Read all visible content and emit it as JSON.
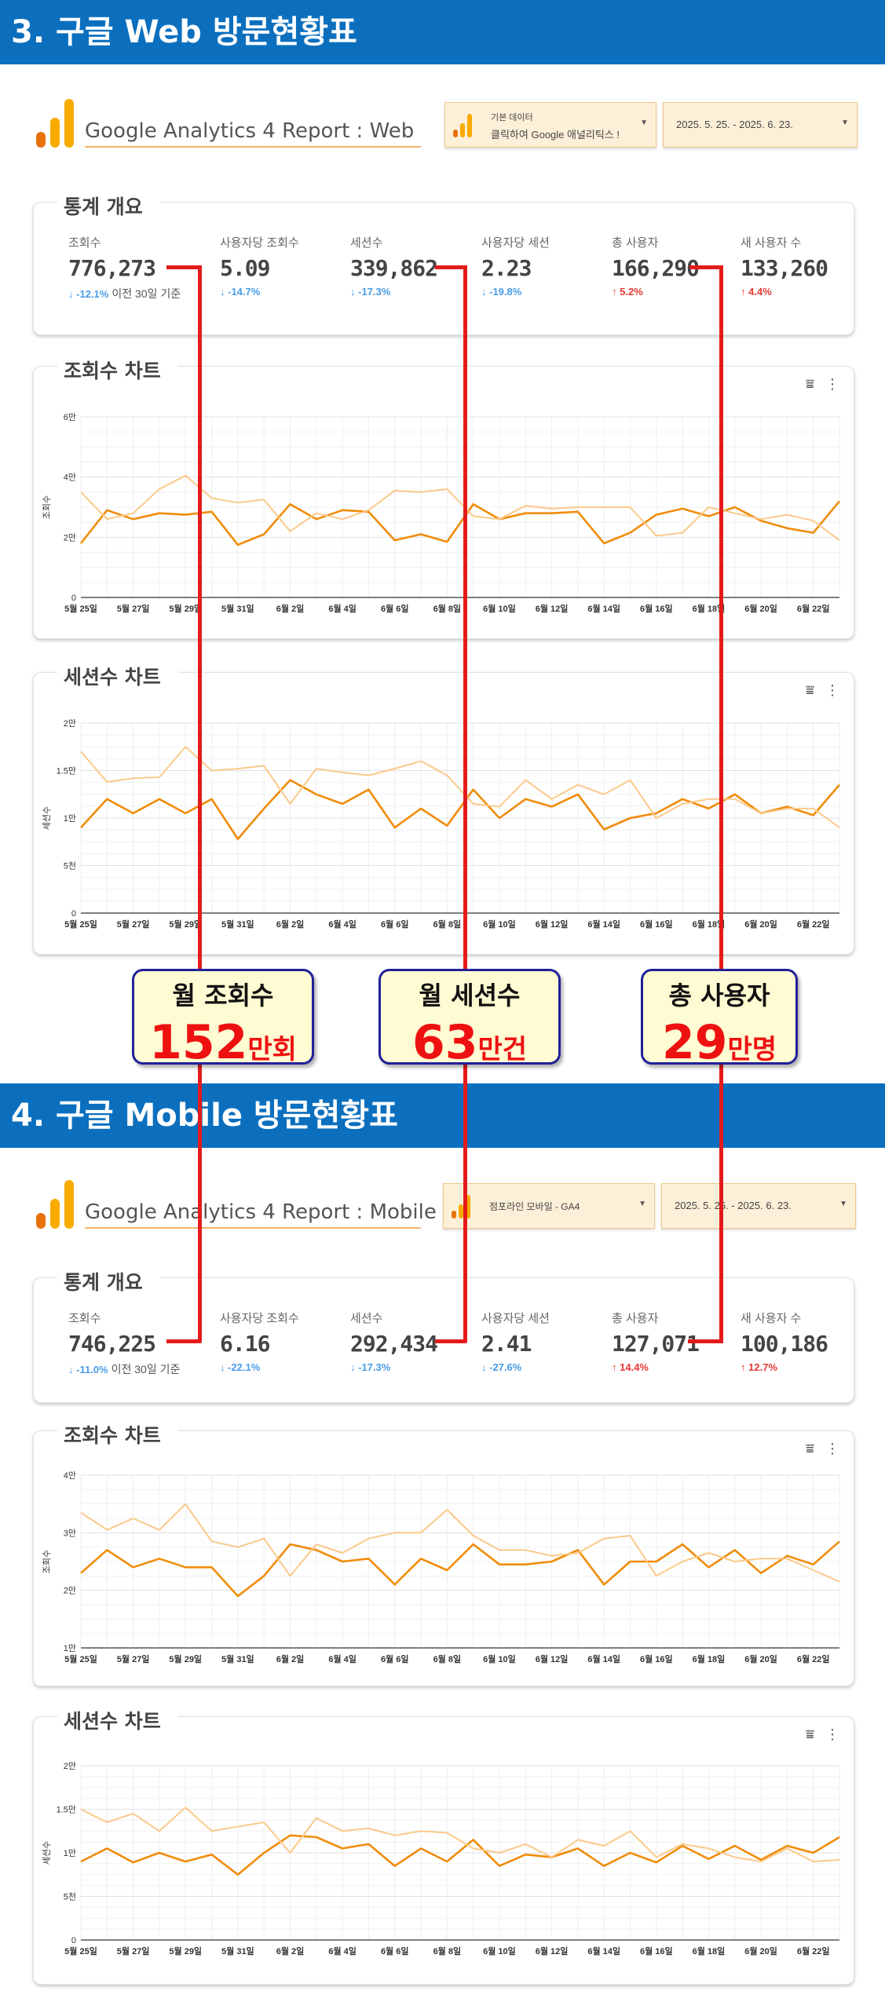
{
  "sections": [
    {
      "title": "3. 구글 Web 방문현황표",
      "report_title": "Google Analytics 4 Report : Web",
      "source_dropdown": {
        "line1": "기본 데이터",
        "line2": "클릭하여 Google 애널리틱스 !"
      },
      "date_range": "2025. 5. 25. - 2025. 6. 23.",
      "overview_title": "통계 개요",
      "metrics": [
        {
          "label": "조회수",
          "value": "776,273",
          "change": "-12.1%",
          "dir": "down",
          "compare": "이전 30일 기준"
        },
        {
          "label": "사용자당 조회수",
          "value": "5.09",
          "change": "-14.7%",
          "dir": "down"
        },
        {
          "label": "세션수",
          "value": "339,862",
          "change": "-17.3%",
          "dir": "down"
        },
        {
          "label": "사용자당 세션",
          "value": "2.23",
          "change": "-19.8%",
          "dir": "down"
        },
        {
          "label": "총 사용자",
          "value": "166,290",
          "change": "5.2%",
          "dir": "up"
        },
        {
          "label": "새 사용자 수",
          "value": "133,260",
          "change": "4.4%",
          "dir": "up"
        }
      ]
    },
    {
      "title": "4. 구글 Mobile 방문현황표",
      "report_title": "Google Analytics 4 Report : Mobile",
      "source_dropdown": {
        "line1": "",
        "line2": "",
        "single": "점포라인 모바일 - GA4"
      },
      "date_range": "2025. 5. 25. - 2025. 6. 23.",
      "overview_title": "통계 개요",
      "metrics": [
        {
          "label": "조회수",
          "value": "746,225",
          "change": "-11.0%",
          "dir": "down",
          "compare": "이전 30일 기준"
        },
        {
          "label": "사용자당 조회수",
          "value": "6.16",
          "change": "-22.1%",
          "dir": "down"
        },
        {
          "label": "세션수",
          "value": "292,434",
          "change": "-17.3%",
          "dir": "down"
        },
        {
          "label": "사용자당 세션",
          "value": "2.41",
          "change": "-27.6%",
          "dir": "down"
        },
        {
          "label": "총 사용자",
          "value": "127,071",
          "change": "14.4%",
          "dir": "up"
        },
        {
          "label": "새 사용자 수",
          "value": "100,186",
          "change": "12.7%",
          "dir": "up"
        }
      ]
    }
  ],
  "callouts": [
    {
      "title": "월 조회수",
      "number": "152",
      "unit": "만회"
    },
    {
      "title": "월 세션수",
      "number": "63",
      "unit": "만건"
    },
    {
      "title": "총 사용자",
      "number": "29",
      "unit": "만명"
    }
  ],
  "colors": {
    "banner": "#0b6fbe",
    "current": "#f08c0a",
    "previous": "#fbc98a",
    "annotation": "#e31b1b",
    "callout_border": "#20209a"
  },
  "chart_data": [
    {
      "type": "line",
      "title": "조회수 차트",
      "ylabel": "조회수",
      "x": [
        "5월 25일",
        "5월 26일",
        "5월 27일",
        "5월 28일",
        "5월 29일",
        "5월 30일",
        "5월 31일",
        "6월 1일",
        "6월 2일",
        "6월 3일",
        "6월 4일",
        "6월 5일",
        "6월 6일",
        "6월 7일",
        "6월 8일",
        "6월 9일",
        "6월 10일",
        "6월 11일",
        "6월 12일",
        "6월 13일",
        "6월 14일",
        "6월 15일",
        "6월 16일",
        "6월 17일",
        "6월 18일",
        "6월 19일",
        "6월 20일",
        "6월 21일",
        "6월 22일",
        "6월 23일"
      ],
      "tick_labels": [
        "5월 25일",
        "5월 27일",
        "5월 29일",
        "5월 31일",
        "6월 2일",
        "6월 4일",
        "6월 6일",
        "6월 8일",
        "6월 10일",
        "6월 12일",
        "6월 14일",
        "6월 16일",
        "6월 18일",
        "6월 20일",
        "6월 22일"
      ],
      "ylim": [
        0,
        60000
      ],
      "yticks": [
        0,
        20000,
        40000,
        60000
      ],
      "ytick_labels": [
        "0",
        "2만",
        "4만",
        "6만"
      ],
      "series": [
        {
          "role": "current",
          "values": [
            18000,
            29000,
            26000,
            28000,
            27500,
            28500,
            17500,
            21000,
            31000,
            26000,
            29000,
            28500,
            19000,
            21000,
            18500,
            31000,
            26000,
            28000,
            28000,
            28500,
            18000,
            21500,
            27500,
            29500,
            27000,
            30000,
            25500,
            23000,
            21500,
            32000
          ]
        },
        {
          "role": "previous",
          "values": [
            35000,
            26000,
            28000,
            36000,
            40500,
            33000,
            31500,
            32500,
            22000,
            28000,
            26000,
            29000,
            35500,
            35000,
            36000,
            27000,
            26000,
            30500,
            29500,
            30000,
            30000,
            30000,
            20500,
            21500,
            30000,
            28000,
            26000,
            27500,
            25500,
            19000
          ]
        }
      ]
    },
    {
      "type": "line",
      "title": "세션수 차트",
      "ylabel": "세션수",
      "x": [
        "5월 25일",
        "5월 26일",
        "5월 27일",
        "5월 28일",
        "5월 29일",
        "5월 30일",
        "5월 31일",
        "6월 1일",
        "6월 2일",
        "6월 3일",
        "6월 4일",
        "6월 5일",
        "6월 6일",
        "6월 7일",
        "6월 8일",
        "6월 9일",
        "6월 10일",
        "6월 11일",
        "6월 12일",
        "6월 13일",
        "6월 14일",
        "6월 15일",
        "6월 16일",
        "6월 17일",
        "6월 18일",
        "6월 19일",
        "6월 20일",
        "6월 21일",
        "6월 22일",
        "6월 23일"
      ],
      "tick_labels": [
        "5월 25일",
        "5월 27일",
        "5월 29일",
        "5월 31일",
        "6월 2일",
        "6월 4일",
        "6월 6일",
        "6월 8일",
        "6월 10일",
        "6월 12일",
        "6월 14일",
        "6월 16일",
        "6월 18일",
        "6월 20일",
        "6월 22일"
      ],
      "ylim": [
        0,
        20000
      ],
      "yticks": [
        0,
        5000,
        10000,
        15000,
        20000
      ],
      "ytick_labels": [
        "0",
        "5천",
        "1만",
        "1.5만",
        "2만"
      ],
      "series": [
        {
          "role": "current",
          "values": [
            9000,
            12000,
            10500,
            12000,
            10500,
            12000,
            7800,
            11000,
            14000,
            12500,
            11500,
            13000,
            9000,
            11000,
            9200,
            13000,
            10000,
            12000,
            11200,
            12500,
            8800,
            10000,
            10500,
            12000,
            11000,
            12500,
            10500,
            11200,
            10300,
            13500
          ]
        },
        {
          "role": "previous",
          "values": [
            17000,
            13800,
            14200,
            14300,
            17500,
            15000,
            15200,
            15500,
            11500,
            15200,
            14800,
            14500,
            15200,
            16000,
            14500,
            11500,
            11200,
            14000,
            12000,
            13500,
            12500,
            14000,
            10000,
            11500,
            12000,
            12000,
            10500,
            11000,
            11000,
            9000
          ]
        }
      ]
    },
    {
      "type": "line",
      "title": "조회수 차트",
      "ylabel": "조회수",
      "x": [
        "5월 25일",
        "5월 26일",
        "5월 27일",
        "5월 28일",
        "5월 29일",
        "5월 30일",
        "5월 31일",
        "6월 1일",
        "6월 2일",
        "6월 3일",
        "6월 4일",
        "6월 5일",
        "6월 6일",
        "6월 7일",
        "6월 8일",
        "6월 9일",
        "6월 10일",
        "6월 11일",
        "6월 12일",
        "6월 13일",
        "6월 14일",
        "6월 15일",
        "6월 16일",
        "6월 17일",
        "6월 18일",
        "6월 19일",
        "6월 20일",
        "6월 21일",
        "6월 22일",
        "6월 23일"
      ],
      "tick_labels": [
        "5월 25일",
        "5월 27일",
        "5월 29일",
        "5월 31일",
        "6월 2일",
        "6월 4일",
        "6월 6일",
        "6월 8일",
        "6월 10일",
        "6월 12일",
        "6월 14일",
        "6월 16일",
        "6월 18일",
        "6월 20일",
        "6월 22일"
      ],
      "ylim": [
        10000,
        40000
      ],
      "yticks": [
        10000,
        20000,
        30000,
        40000
      ],
      "ytick_labels": [
        "1만",
        "2만",
        "3만",
        "4만"
      ],
      "series": [
        {
          "role": "current",
          "values": [
            23000,
            27000,
            24000,
            25500,
            24000,
            24000,
            19000,
            22500,
            28000,
            27000,
            25000,
            25500,
            21000,
            25500,
            23500,
            28000,
            24500,
            24500,
            25000,
            27000,
            21000,
            25000,
            25000,
            28000,
            24000,
            27000,
            23000,
            26000,
            24500,
            28500
          ]
        },
        {
          "role": "previous",
          "values": [
            33500,
            30500,
            32500,
            30500,
            35000,
            28500,
            27500,
            29000,
            22500,
            28000,
            26500,
            29000,
            30000,
            30000,
            34000,
            29500,
            27000,
            27000,
            26000,
            26500,
            29000,
            29500,
            22500,
            25000,
            26500,
            25000,
            25500,
            25500,
            23500,
            21500
          ]
        }
      ]
    },
    {
      "type": "line",
      "title": "세션수 차트",
      "ylabel": "세션수",
      "x": [
        "5월 25일",
        "5월 26일",
        "5월 27일",
        "5월 28일",
        "5월 29일",
        "5월 30일",
        "5월 31일",
        "6월 1일",
        "6월 2일",
        "6월 3일",
        "6월 4일",
        "6월 5일",
        "6월 6일",
        "6월 7일",
        "6월 8일",
        "6월 9일",
        "6월 10일",
        "6월 11일",
        "6월 12일",
        "6월 13일",
        "6월 14일",
        "6월 15일",
        "6월 16일",
        "6월 17일",
        "6월 18일",
        "6월 19일",
        "6월 20일",
        "6월 21일",
        "6월 22일",
        "6월 23일"
      ],
      "tick_labels": [
        "5월 25일",
        "5월 27일",
        "5월 29일",
        "5월 31일",
        "6월 2일",
        "6월 4일",
        "6월 6일",
        "6월 8일",
        "6월 10일",
        "6월 12일",
        "6월 14일",
        "6월 16일",
        "6월 18일",
        "6월 20일",
        "6월 22일"
      ],
      "ylim": [
        0,
        20000
      ],
      "yticks": [
        0,
        5000,
        10000,
        15000,
        20000
      ],
      "ytick_labels": [
        "0",
        "5천",
        "1만",
        "1.5만",
        "2만"
      ],
      "series": [
        {
          "role": "current",
          "values": [
            9000,
            10500,
            8900,
            10000,
            9000,
            9800,
            7500,
            10000,
            12000,
            11800,
            10500,
            11000,
            8500,
            10500,
            9000,
            11500,
            8500,
            9800,
            9500,
            10500,
            8500,
            10000,
            8900,
            10800,
            9300,
            10800,
            9200,
            10800,
            10000,
            11800
          ]
        },
        {
          "role": "previous",
          "values": [
            15000,
            13500,
            14500,
            12500,
            15200,
            12500,
            13000,
            13500,
            10000,
            14000,
            12500,
            12800,
            12000,
            12500,
            12300,
            10500,
            10000,
            11000,
            9500,
            11500,
            10800,
            12500,
            9500,
            11000,
            10500,
            9500,
            9000,
            10500,
            9000,
            9200
          ]
        }
      ]
    }
  ]
}
